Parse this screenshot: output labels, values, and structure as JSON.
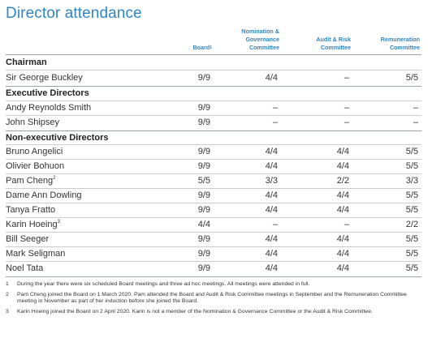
{
  "title": "Director attendance",
  "headers": {
    "board": "Board",
    "board_ref": "1",
    "nomination": [
      "Nomination &",
      "Governance",
      "Committee"
    ],
    "audit": [
      "Audit & Risk",
      "Committee"
    ],
    "remuneration": [
      "Remuneration",
      "Committee"
    ]
  },
  "sections": {
    "chairman": "Chairman",
    "executive": "Executive Directors",
    "non_executive": "Non-executive Directors"
  },
  "rows": [
    {
      "name": "Sir George Buckley",
      "ref": "",
      "board": "9/9",
      "nom": "4/4",
      "audit": "–",
      "rem": "5/5"
    },
    {
      "name": "Andy Reynolds Smith",
      "ref": "",
      "board": "9/9",
      "nom": "–",
      "audit": "–",
      "rem": "–"
    },
    {
      "name": "John Shipsey",
      "ref": "",
      "board": "9/9",
      "nom": "–",
      "audit": "–",
      "rem": "–"
    },
    {
      "name": "Bruno Angelici",
      "ref": "",
      "board": "9/9",
      "nom": "4/4",
      "audit": "4/4",
      "rem": "5/5"
    },
    {
      "name": "Olivier Bohuon",
      "ref": "",
      "board": "9/9",
      "nom": "4/4",
      "audit": "4/4",
      "rem": "5/5"
    },
    {
      "name": "Pam Cheng",
      "ref": "2",
      "board": "5/5",
      "nom": "3/3",
      "audit": "2/2",
      "rem": "3/3"
    },
    {
      "name": "Dame Ann Dowling",
      "ref": "",
      "board": "9/9",
      "nom": "4/4",
      "audit": "4/4",
      "rem": "5/5"
    },
    {
      "name": "Tanya Fratto",
      "ref": "",
      "board": "9/9",
      "nom": "4/4",
      "audit": "4/4",
      "rem": "5/5"
    },
    {
      "name": "Karin Hoeing",
      "ref": "3",
      "board": "4/4",
      "nom": "–",
      "audit": "–",
      "rem": "2/2"
    },
    {
      "name": "Bill Seeger",
      "ref": "",
      "board": "9/9",
      "nom": "4/4",
      "audit": "4/4",
      "rem": "5/5"
    },
    {
      "name": "Mark Seligman",
      "ref": "",
      "board": "9/9",
      "nom": "4/4",
      "audit": "4/4",
      "rem": "5/5"
    },
    {
      "name": "Noel Tata",
      "ref": "",
      "board": "9/9",
      "nom": "4/4",
      "audit": "4/4",
      "rem": "5/5"
    }
  ],
  "notes": [
    {
      "n": "1",
      "text": "During the year there were six scheduled Board meetings and three ad hoc meetings. All meetings were attended in full."
    },
    {
      "n": "2",
      "text": "Pam Cheng joined the Board on 1 March 2020. Pam attended the Board and Audit & Risk Committee meetings in September and the Remuneration Committee meeting in November as part of her induction before she joined the Board."
    },
    {
      "n": "3",
      "text": "Karin Hoeing joined the Board on 2 April 2020. Karin is not a member of the Nomination & Governance Committee or the Audit & Risk Committee."
    }
  ]
}
